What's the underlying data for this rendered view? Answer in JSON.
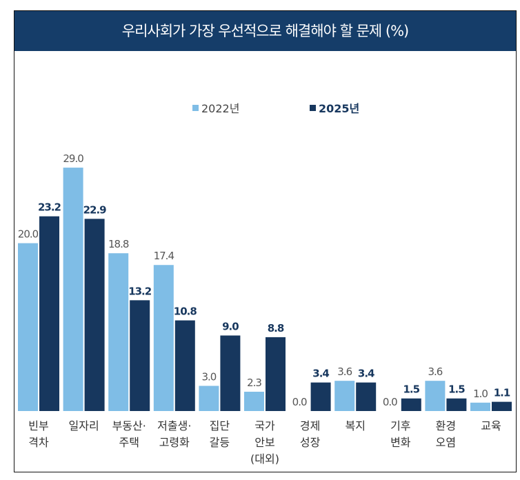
{
  "chart_data": {
    "type": "bar",
    "title": "우리사회가 가장 우선적으로 해결해야 할 문제 (%)",
    "categories": [
      [
        "빈부",
        "격차"
      ],
      [
        "일자리"
      ],
      [
        "부동산·",
        "주택"
      ],
      [
        "저출생·",
        "고령화"
      ],
      [
        "집단",
        "갈등"
      ],
      [
        "국가",
        "안보",
        "(대외)"
      ],
      [
        "경제",
        "성장"
      ],
      [
        "복지"
      ],
      [
        "기후",
        "변화"
      ],
      [
        "환경",
        "오염"
      ],
      [
        "교육"
      ]
    ],
    "series": [
      {
        "name": "2022년",
        "color": "#7fbde6",
        "values": [
          20.0,
          29.0,
          18.8,
          17.4,
          3.0,
          2.3,
          0.0,
          3.6,
          0.0,
          3.6,
          1.0
        ]
      },
      {
        "name": "2025년",
        "color": "#17375e",
        "values": [
          23.2,
          22.9,
          13.2,
          10.8,
          9.0,
          8.8,
          3.4,
          3.4,
          1.5,
          1.5,
          1.1
        ]
      }
    ],
    "ylim": [
      0,
      29.5
    ],
    "legend": "top-center",
    "grid": false
  }
}
